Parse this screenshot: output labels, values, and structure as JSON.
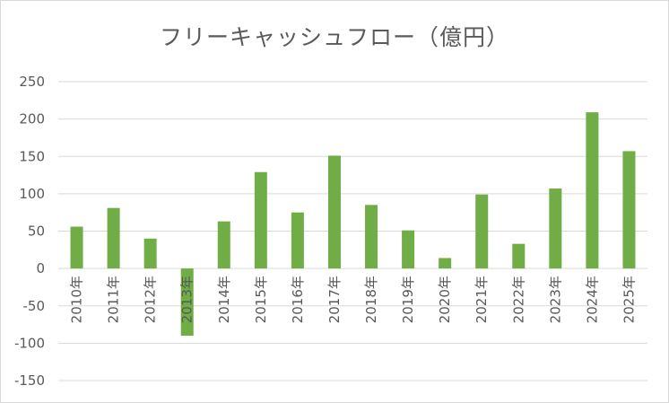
{
  "chart_data": {
    "type": "bar",
    "title": "フリーキャッシュフロー（億円）",
    "xlabel": "",
    "ylabel": "",
    "ylim": [
      -150,
      250
    ],
    "yticks": [
      250,
      200,
      150,
      100,
      50,
      0,
      -50,
      -100,
      -150
    ],
    "grid": true,
    "legend": "none",
    "color": "#70ad47",
    "categories": [
      "2010年",
      "2011年",
      "2012年",
      "2013年",
      "2014年",
      "2015年",
      "2016年",
      "2017年",
      "2018年",
      "2019年",
      "2020年",
      "2021年",
      "2022年",
      "2023年",
      "2024年",
      "2025年"
    ],
    "values": [
      56,
      81,
      40,
      -90,
      63,
      129,
      75,
      151,
      85,
      51,
      14,
      99,
      33,
      107,
      209,
      157
    ]
  }
}
